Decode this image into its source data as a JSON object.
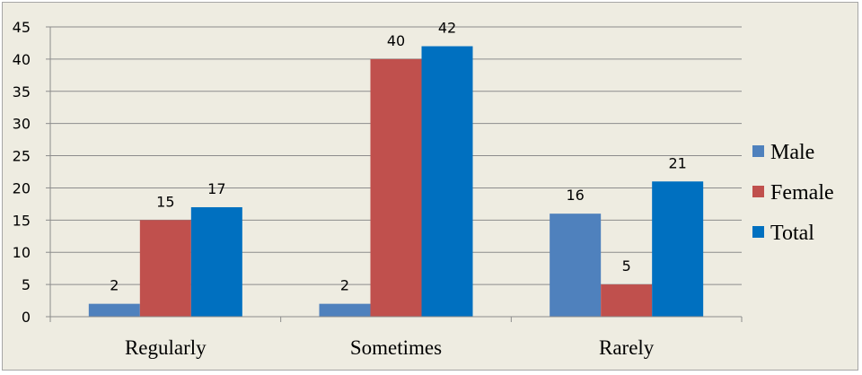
{
  "chart_data": {
    "type": "bar",
    "categories": [
      "Regularly",
      "Sometimes",
      "Rarely"
    ],
    "series": [
      {
        "name": "Male",
        "values": [
          2,
          2,
          16
        ],
        "color": "#4f81bd"
      },
      {
        "name": "Female",
        "values": [
          15,
          40,
          5
        ],
        "color": "#c0504d"
      },
      {
        "name": "Total",
        "values": [
          17,
          42,
          21
        ],
        "color": "#0070c0"
      }
    ],
    "ylim": [
      0,
      45
    ],
    "yticks": [
      0,
      5,
      10,
      15,
      20,
      25,
      30,
      35,
      40,
      45
    ],
    "grid": true,
    "legend": "right",
    "background": "#eeece1"
  }
}
